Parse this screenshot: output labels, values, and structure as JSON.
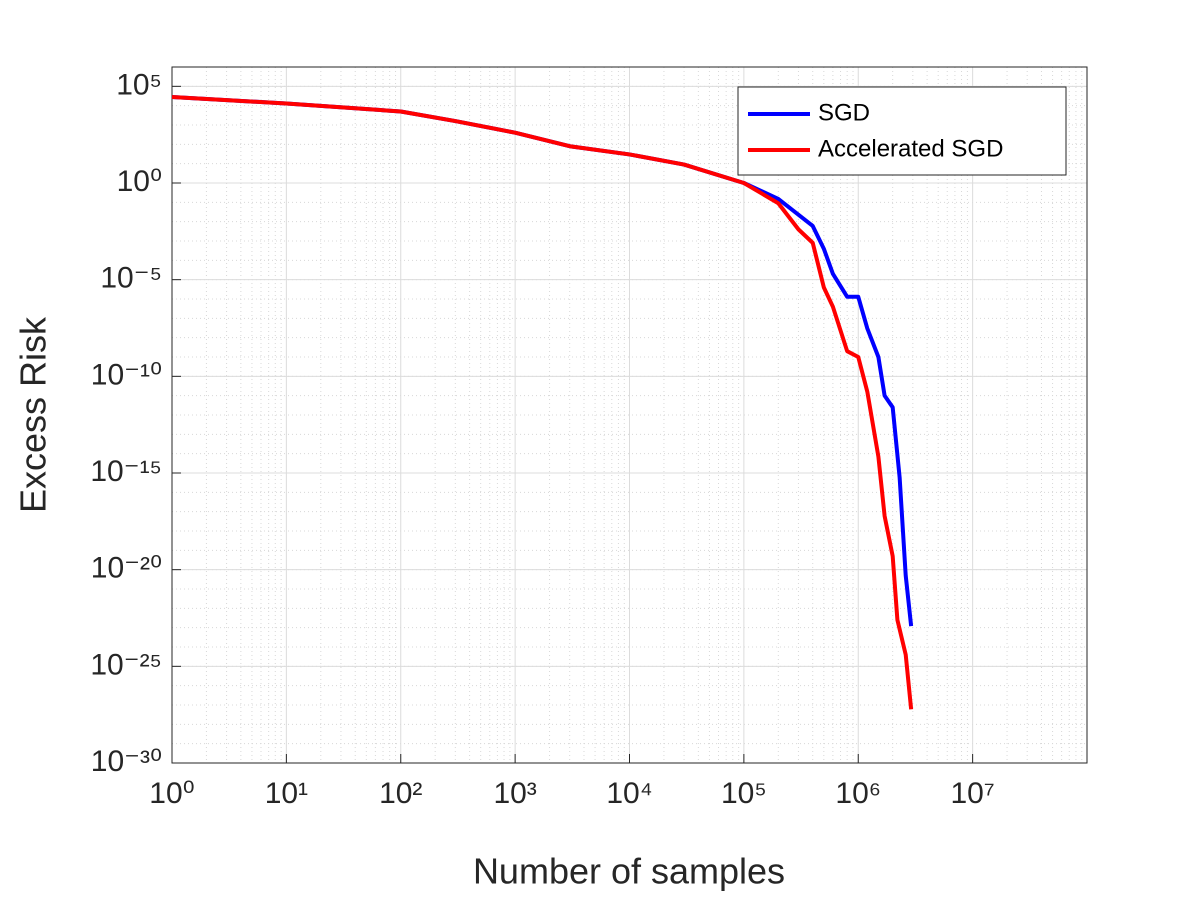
{
  "chart_data": {
    "type": "line",
    "x_label": "Number of samples",
    "y_label": "Excess Risk",
    "xscale": "log",
    "yscale": "log",
    "xlim": [
      1,
      100000000
    ],
    "ylim": [
      1e-30,
      1000000
    ],
    "xticks": [
      {
        "value": 1,
        "label": "10⁰"
      },
      {
        "value": 10,
        "label": "10¹"
      },
      {
        "value": 100,
        "label": "10²"
      },
      {
        "value": 1000,
        "label": "10³"
      },
      {
        "value": 10000,
        "label": "10⁴"
      },
      {
        "value": 100000,
        "label": "10⁵"
      },
      {
        "value": 1000000,
        "label": "10⁶"
      },
      {
        "value": 10000000,
        "label": "10⁷"
      }
    ],
    "yticks": [
      {
        "value": 1e-30,
        "label": "10⁻³⁰"
      },
      {
        "value": 1e-25,
        "label": "10⁻²⁵"
      },
      {
        "value": 1e-20,
        "label": "10⁻²⁰"
      },
      {
        "value": 1e-15,
        "label": "10⁻¹⁵"
      },
      {
        "value": 1e-10,
        "label": "10⁻¹⁰"
      },
      {
        "value": 1e-05,
        "label": "10⁻⁵"
      },
      {
        "value": 1,
        "label": "10⁰"
      },
      {
        "value": 100000,
        "label": "10⁵"
      }
    ],
    "grid": true,
    "minor_grid": true,
    "legend": "upper right",
    "series": [
      {
        "name": "SGD",
        "color": "#0000ff",
        "x": [
          1,
          10,
          100,
          300,
          1000,
          3000,
          10000,
          30000,
          100000,
          200000,
          400000,
          500000,
          600000,
          800000,
          1000000,
          1200000,
          1500000,
          1700000,
          2000000,
          2300000,
          2600000,
          2900000
        ],
        "values": [
          28000,
          13000,
          5000,
          1600,
          400,
          80,
          30,
          9,
          1,
          0.15,
          0.006,
          0.0004,
          2e-05,
          1.3e-06,
          1.3e-06,
          3e-08,
          1e-09,
          1e-11,
          2.5e-12,
          6e-16,
          5e-21,
          1.2e-23
        ]
      },
      {
        "name": "Accelerated SGD",
        "color": "#ff0000",
        "x": [
          1,
          10,
          100,
          300,
          1000,
          3000,
          10000,
          30000,
          100000,
          200000,
          300000,
          400000,
          500000,
          600000,
          800000,
          1000000,
          1200000,
          1500000,
          1700000,
          2000000,
          2200000,
          2600000,
          2900000
        ],
        "values": [
          28000,
          13000,
          5000,
          1600,
          400,
          80,
          30,
          9,
          1,
          0.09,
          0.004,
          0.0008,
          4e-06,
          4e-07,
          2e-09,
          1e-09,
          1.6e-11,
          7e-15,
          6e-18,
          5e-20,
          2.5e-23,
          4e-25,
          6e-28
        ]
      }
    ]
  }
}
